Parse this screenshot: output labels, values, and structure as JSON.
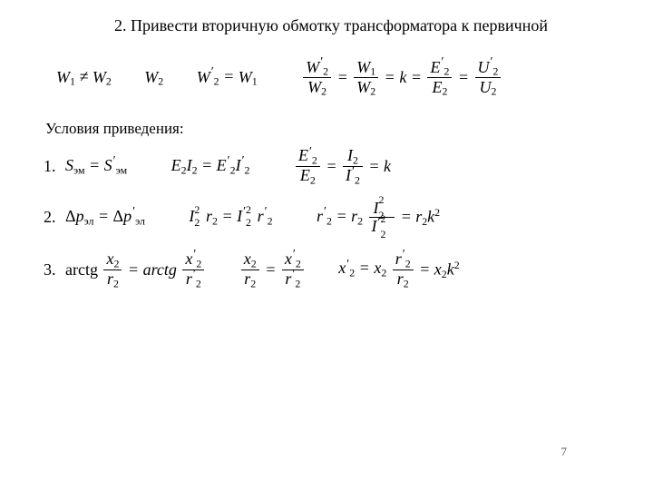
{
  "title": "2. Привести вторичную обмотку трансформатора к первичной",
  "row1": {
    "a": "W₁ ≠ W₂",
    "b": "W₂",
    "c": "W′₂ = W₁",
    "frac1_top": "W′₂",
    "frac1_bot": "W₂",
    "frac2_top": "W₁",
    "frac2_bot": "W₂",
    "frac3_top": "E′₂",
    "frac3_bot": "E₂",
    "frac4_top": "U′₂",
    "frac4_bot": "U₂",
    "k": "k"
  },
  "subheading": "Условия приведения:",
  "line1": {
    "num": "1.",
    "a": "Sэм = S′эм",
    "b": "E₂I₂ = E′₂I′₂",
    "frac1_top": "E′₂",
    "frac1_bot": "E₂",
    "frac2_top": "I₂",
    "frac2_bot": "I′₂",
    "k": "k"
  },
  "line2": {
    "num": "2.",
    "a": "Δpэл = Δp′эл",
    "b": "I²₂r₂ = I′²₂r′₂",
    "c_lead": "r′₂ = r₂",
    "frac_top": "I²₂",
    "frac_bot": "I′²₂",
    "tail": " = r₂k²"
  },
  "line3": {
    "num": "3.",
    "a_lead": "arctg",
    "fracA_top": "x₂",
    "fracA_bot": "r₂",
    "a_mid": " = arctg",
    "fracB_top": "x′₂",
    "fracB_bot": "r′₂",
    "fracC_top": "x₂",
    "fracC_bot": "r₂",
    "fracD_top": "x′₂",
    "fracD_bot": "r′₂",
    "c_lead": "x′₂ = x₂",
    "fracE_top": "r′₂",
    "fracE_bot": "r₂",
    "tail": " = x₂k²"
  },
  "pagenum": "7"
}
